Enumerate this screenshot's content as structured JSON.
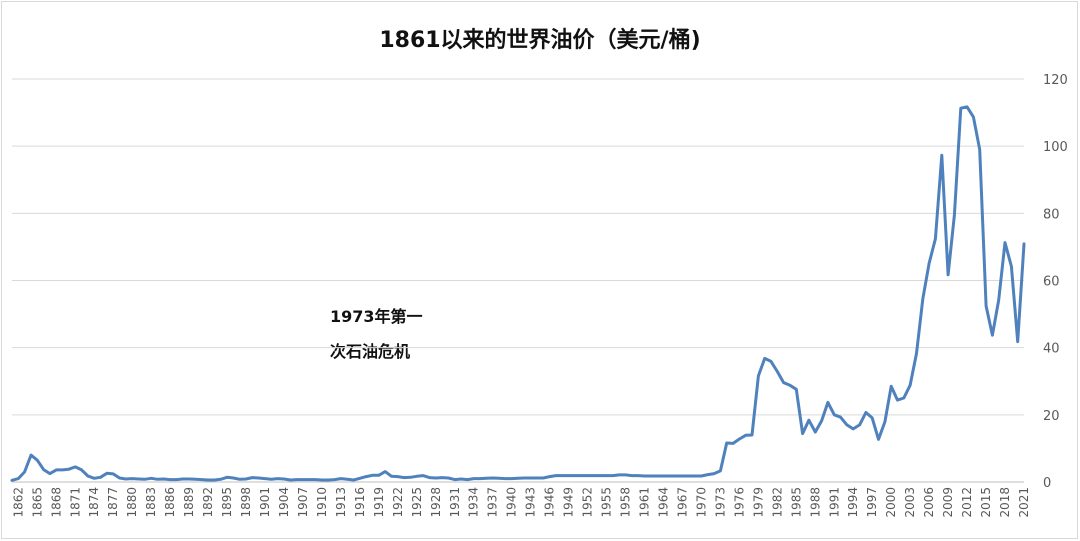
{
  "chart_data": {
    "type": "line",
    "title": "1861以来的世界油价（美元/桶)",
    "annotation": [
      "1973年第一",
      "次石油危机"
    ],
    "xlabel": "",
    "ylabel": "",
    "ylim": [
      0,
      120
    ],
    "y_ticks": [
      0,
      20,
      40,
      60,
      80,
      100,
      120
    ],
    "y_axis_side": "right",
    "xlim": [
      1861,
      2021
    ],
    "x_ticks": [
      1862,
      1865,
      1868,
      1871,
      1874,
      1877,
      1880,
      1883,
      1886,
      1889,
      1892,
      1895,
      1898,
      1901,
      1904,
      1907,
      1910,
      1913,
      1916,
      1919,
      1922,
      1925,
      1928,
      1931,
      1934,
      1937,
      1940,
      1943,
      1946,
      1949,
      1952,
      1955,
      1958,
      1961,
      1964,
      1967,
      1970,
      1973,
      1976,
      1979,
      1982,
      1985,
      1988,
      1991,
      1994,
      1997,
      2000,
      2003,
      2006,
      2009,
      2012,
      2015,
      2018,
      2021
    ],
    "grid": "horizontal",
    "legend": "none",
    "line_color": "#4f81bd",
    "series": [
      {
        "points": [
          [
            1861,
            0.5
          ],
          [
            1862,
            1.0
          ],
          [
            1863,
            3.0
          ],
          [
            1864,
            8.0
          ],
          [
            1865,
            6.5
          ],
          [
            1866,
            3.7
          ],
          [
            1867,
            2.5
          ],
          [
            1868,
            3.6
          ],
          [
            1869,
            3.6
          ],
          [
            1870,
            3.8
          ],
          [
            1871,
            4.5
          ],
          [
            1872,
            3.6
          ],
          [
            1873,
            1.8
          ],
          [
            1874,
            1.1
          ],
          [
            1875,
            1.4
          ],
          [
            1876,
            2.6
          ],
          [
            1877,
            2.4
          ],
          [
            1878,
            1.2
          ],
          [
            1879,
            0.9
          ],
          [
            1880,
            1.0
          ],
          [
            1881,
            0.9
          ],
          [
            1882,
            0.8
          ],
          [
            1883,
            1.1
          ],
          [
            1884,
            0.8
          ],
          [
            1885,
            0.9
          ],
          [
            1886,
            0.7
          ],
          [
            1887,
            0.7
          ],
          [
            1888,
            0.9
          ],
          [
            1889,
            0.9
          ],
          [
            1890,
            0.8
          ],
          [
            1891,
            0.7
          ],
          [
            1892,
            0.6
          ],
          [
            1893,
            0.6
          ],
          [
            1894,
            0.8
          ],
          [
            1895,
            1.4
          ],
          [
            1896,
            1.2
          ],
          [
            1897,
            0.8
          ],
          [
            1898,
            0.9
          ],
          [
            1899,
            1.3
          ],
          [
            1900,
            1.2
          ],
          [
            1901,
            1.0
          ],
          [
            1902,
            0.8
          ],
          [
            1903,
            1.0
          ],
          [
            1904,
            0.9
          ],
          [
            1905,
            0.6
          ],
          [
            1906,
            0.7
          ],
          [
            1907,
            0.7
          ],
          [
            1908,
            0.7
          ],
          [
            1909,
            0.7
          ],
          [
            1910,
            0.6
          ],
          [
            1911,
            0.6
          ],
          [
            1912,
            0.7
          ],
          [
            1913,
            1.0
          ],
          [
            1914,
            0.8
          ],
          [
            1915,
            0.6
          ],
          [
            1916,
            1.1
          ],
          [
            1917,
            1.6
          ],
          [
            1918,
            2.0
          ],
          [
            1919,
            2.0
          ],
          [
            1920,
            3.1
          ],
          [
            1921,
            1.7
          ],
          [
            1922,
            1.6
          ],
          [
            1923,
            1.3
          ],
          [
            1924,
            1.4
          ],
          [
            1925,
            1.7
          ],
          [
            1926,
            1.9
          ],
          [
            1927,
            1.3
          ],
          [
            1928,
            1.2
          ],
          [
            1929,
            1.3
          ],
          [
            1930,
            1.2
          ],
          [
            1931,
            0.7
          ],
          [
            1932,
            0.9
          ],
          [
            1933,
            0.7
          ],
          [
            1934,
            1.0
          ],
          [
            1935,
            1.0
          ],
          [
            1936,
            1.1
          ],
          [
            1937,
            1.2
          ],
          [
            1938,
            1.1
          ],
          [
            1939,
            1.0
          ],
          [
            1940,
            1.0
          ],
          [
            1941,
            1.1
          ],
          [
            1942,
            1.2
          ],
          [
            1943,
            1.2
          ],
          [
            1944,
            1.2
          ],
          [
            1945,
            1.2
          ],
          [
            1946,
            1.6
          ],
          [
            1947,
            1.9
          ],
          [
            1948,
            1.9
          ],
          [
            1949,
            1.9
          ],
          [
            1950,
            1.9
          ],
          [
            1951,
            1.9
          ],
          [
            1952,
            1.9
          ],
          [
            1953,
            1.9
          ],
          [
            1954,
            1.9
          ],
          [
            1955,
            1.9
          ],
          [
            1956,
            1.9
          ],
          [
            1957,
            2.1
          ],
          [
            1958,
            2.1
          ],
          [
            1959,
            1.9
          ],
          [
            1960,
            1.9
          ],
          [
            1961,
            1.8
          ],
          [
            1962,
            1.8
          ],
          [
            1963,
            1.8
          ],
          [
            1964,
            1.8
          ],
          [
            1965,
            1.8
          ],
          [
            1966,
            1.8
          ],
          [
            1967,
            1.8
          ],
          [
            1968,
            1.8
          ],
          [
            1969,
            1.8
          ],
          [
            1970,
            1.8
          ],
          [
            1971,
            2.2
          ],
          [
            1972,
            2.5
          ],
          [
            1973,
            3.3
          ],
          [
            1974,
            11.6
          ],
          [
            1975,
            11.5
          ],
          [
            1976,
            12.8
          ],
          [
            1977,
            13.9
          ],
          [
            1978,
            14.0
          ],
          [
            1979,
            31.6
          ],
          [
            1980,
            36.8
          ],
          [
            1981,
            35.9
          ],
          [
            1982,
            32.9
          ],
          [
            1983,
            29.6
          ],
          [
            1984,
            28.8
          ],
          [
            1985,
            27.6
          ],
          [
            1986,
            14.4
          ],
          [
            1987,
            18.4
          ],
          [
            1988,
            14.9
          ],
          [
            1989,
            18.2
          ],
          [
            1990,
            23.7
          ],
          [
            1991,
            20.0
          ],
          [
            1992,
            19.3
          ],
          [
            1993,
            17.0
          ],
          [
            1994,
            15.8
          ],
          [
            1995,
            17.0
          ],
          [
            1996,
            20.7
          ],
          [
            1997,
            19.1
          ],
          [
            1998,
            12.7
          ],
          [
            1999,
            17.9
          ],
          [
            2000,
            28.5
          ],
          [
            2001,
            24.4
          ],
          [
            2002,
            25.0
          ],
          [
            2003,
            28.8
          ],
          [
            2004,
            38.3
          ],
          [
            2005,
            54.5
          ],
          [
            2006,
            65.1
          ],
          [
            2007,
            72.4
          ],
          [
            2008,
            97.3
          ],
          [
            2009,
            61.7
          ],
          [
            2010,
            79.5
          ],
          [
            2011,
            111.3
          ],
          [
            2012,
            111.7
          ],
          [
            2013,
            108.7
          ],
          [
            2014,
            99.0
          ],
          [
            2015,
            52.4
          ],
          [
            2016,
            43.7
          ],
          [
            2017,
            54.2
          ],
          [
            2018,
            71.3
          ],
          [
            2019,
            64.2
          ],
          [
            2020,
            41.8
          ],
          [
            2021,
            70.9
          ]
        ]
      }
    ]
  }
}
